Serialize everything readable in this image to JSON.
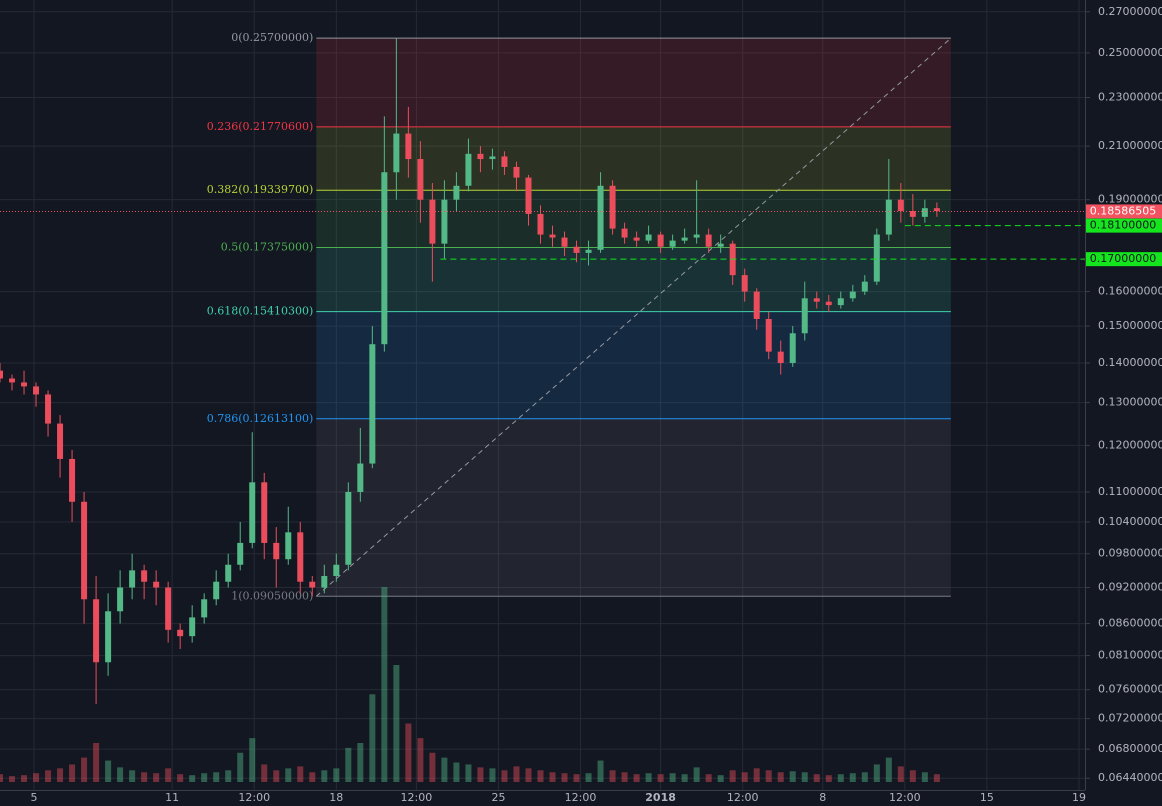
{
  "chart_data": {
    "type": "candlestick",
    "log_scale": true,
    "grid": true,
    "up_color": "#53b987",
    "down_color": "#eb4d5c",
    "xlim": [
      0,
      271
    ],
    "ylim": [
      0.063,
      0.276
    ],
    "xticks": [
      {
        "value": 8.5,
        "label": "5"
      },
      {
        "value": 43,
        "label": "11"
      },
      {
        "value": 63.5,
        "label": "12:00"
      },
      {
        "value": 84,
        "label": "18"
      },
      {
        "value": 104,
        "label": "12:00"
      },
      {
        "value": 124.5,
        "label": "25"
      },
      {
        "value": 145,
        "label": "12:00"
      },
      {
        "value": 165,
        "label": "2018"
      },
      {
        "value": 185.5,
        "label": "12:00"
      },
      {
        "value": 205.5,
        "label": "8"
      },
      {
        "value": 226,
        "label": "12:00"
      },
      {
        "value": 246.5,
        "label": "15"
      },
      {
        "value": 269.5,
        "label": "19"
      }
    ],
    "yticks": [
      {
        "value": 0.27,
        "label": "0.27000000"
      },
      {
        "value": 0.25,
        "label": "0.25000000"
      },
      {
        "value": 0.23,
        "label": "0.23000000"
      },
      {
        "value": 0.21,
        "label": "0.21000000"
      },
      {
        "value": 0.19,
        "label": "0.19000000"
      },
      {
        "value": 0.16,
        "label": "0.16000000"
      },
      {
        "value": 0.15,
        "label": "0.15000000"
      },
      {
        "value": 0.14,
        "label": "0.14000000"
      },
      {
        "value": 0.13,
        "label": "0.13000000"
      },
      {
        "value": 0.12,
        "label": "0.12000000"
      },
      {
        "value": 0.11,
        "label": "0.11000000"
      },
      {
        "value": 0.104,
        "label": "0.10400000"
      },
      {
        "value": 0.098,
        "label": "0.09800000"
      },
      {
        "value": 0.092,
        "label": "0.09200000"
      },
      {
        "value": 0.086,
        "label": "0.08600000"
      },
      {
        "value": 0.081,
        "label": "0.08100000"
      },
      {
        "value": 0.076,
        "label": "0.07600000"
      },
      {
        "value": 0.072,
        "label": "0.07200000"
      },
      {
        "value": 0.068,
        "label": "0.06800000"
      },
      {
        "value": 0.0644,
        "label": "0.06440000"
      }
    ],
    "x": [
      0,
      3,
      6,
      9,
      12,
      15,
      18,
      21,
      24,
      27,
      30,
      33,
      36,
      39,
      42,
      45,
      48,
      51,
      54,
      57,
      60,
      63,
      66,
      69,
      72,
      75,
      78,
      81,
      84,
      87,
      90,
      93,
      96,
      99,
      102,
      105,
      108,
      111,
      114,
      117,
      120,
      123,
      126,
      129,
      132,
      135,
      138,
      141,
      144,
      147,
      150,
      153,
      156,
      159,
      162,
      165,
      168,
      171,
      174,
      177,
      180,
      183,
      186,
      189,
      192,
      195,
      198,
      201,
      204,
      207,
      210,
      213,
      216,
      219,
      222,
      225,
      228,
      231,
      234
    ],
    "open": [
      0.138,
      0.136,
      0.135,
      0.134,
      0.132,
      0.125,
      0.117,
      0.108,
      0.09,
      0.08,
      0.088,
      0.092,
      0.095,
      0.093,
      0.092,
      0.085,
      0.084,
      0.087,
      0.09,
      0.093,
      0.096,
      0.1,
      0.112,
      0.1,
      0.097,
      0.102,
      0.093,
      0.092,
      0.094,
      0.096,
      0.11,
      0.116,
      0.145,
      0.2,
      0.215,
      0.205,
      0.19,
      0.175,
      0.19,
      0.195,
      0.207,
      0.205,
      0.206,
      0.202,
      0.198,
      0.185,
      0.178,
      0.177,
      0.174,
      0.172,
      0.173,
      0.195,
      0.18,
      0.177,
      0.176,
      0.178,
      0.174,
      0.176,
      0.177,
      0.178,
      0.174,
      0.175,
      0.165,
      0.16,
      0.152,
      0.143,
      0.14,
      0.148,
      0.158,
      0.157,
      0.156,
      0.158,
      0.16,
      0.163,
      0.178,
      0.19,
      0.186,
      0.184,
      0.187
    ],
    "high": [
      0.14,
      0.137,
      0.138,
      0.135,
      0.133,
      0.127,
      0.119,
      0.11,
      0.094,
      0.091,
      0.095,
      0.098,
      0.096,
      0.095,
      0.093,
      0.086,
      0.089,
      0.091,
      0.095,
      0.098,
      0.104,
      0.123,
      0.114,
      0.103,
      0.107,
      0.104,
      0.094,
      0.096,
      0.098,
      0.112,
      0.124,
      0.15,
      0.222,
      0.257,
      0.226,
      0.212,
      0.196,
      0.197,
      0.2,
      0.213,
      0.21,
      0.209,
      0.208,
      0.204,
      0.199,
      0.188,
      0.181,
      0.179,
      0.176,
      0.176,
      0.2,
      0.197,
      0.182,
      0.179,
      0.181,
      0.179,
      0.178,
      0.18,
      0.197,
      0.18,
      0.178,
      0.176,
      0.167,
      0.161,
      0.154,
      0.146,
      0.15,
      0.163,
      0.16,
      0.159,
      0.16,
      0.162,
      0.165,
      0.18,
      0.205,
      0.196,
      0.192,
      0.19,
      0.189
    ],
    "low": [
      0.135,
      0.133,
      0.132,
      0.129,
      0.122,
      0.113,
      0.104,
      0.086,
      0.074,
      0.078,
      0.086,
      0.09,
      0.09,
      0.089,
      0.083,
      0.082,
      0.083,
      0.086,
      0.089,
      0.092,
      0.095,
      0.099,
      0.097,
      0.092,
      0.096,
      0.091,
      0.0905,
      0.091,
      0.093,
      0.095,
      0.108,
      0.115,
      0.143,
      0.19,
      0.198,
      0.182,
      0.163,
      0.17,
      0.186,
      0.193,
      0.2,
      0.201,
      0.199,
      0.193,
      0.181,
      0.175,
      0.174,
      0.171,
      0.169,
      0.168,
      0.172,
      0.178,
      0.175,
      0.174,
      0.175,
      0.172,
      0.173,
      0.175,
      0.175,
      0.172,
      0.172,
      0.162,
      0.157,
      0.149,
      0.141,
      0.137,
      0.139,
      0.146,
      0.155,
      0.154,
      0.155,
      0.157,
      0.159,
      0.162,
      0.176,
      0.182,
      0.181,
      0.182,
      0.184
    ],
    "close": [
      0.136,
      0.135,
      0.134,
      0.132,
      0.125,
      0.117,
      0.108,
      0.09,
      0.08,
      0.088,
      0.092,
      0.095,
      0.093,
      0.092,
      0.085,
      0.084,
      0.087,
      0.09,
      0.093,
      0.096,
      0.1,
      0.112,
      0.1,
      0.097,
      0.102,
      0.093,
      0.092,
      0.094,
      0.096,
      0.11,
      0.116,
      0.145,
      0.2,
      0.215,
      0.205,
      0.19,
      0.175,
      0.19,
      0.195,
      0.207,
      0.205,
      0.206,
      0.202,
      0.198,
      0.185,
      0.178,
      0.177,
      0.174,
      0.172,
      0.173,
      0.195,
      0.18,
      0.177,
      0.176,
      0.178,
      0.174,
      0.176,
      0.177,
      0.178,
      0.174,
      0.175,
      0.165,
      0.16,
      0.152,
      0.143,
      0.14,
      0.148,
      0.158,
      0.157,
      0.156,
      0.158,
      0.16,
      0.163,
      0.178,
      0.19,
      0.186,
      0.184,
      0.187,
      0.186
    ],
    "volume": [
      8,
      6,
      7,
      9,
      12,
      14,
      18,
      25,
      40,
      22,
      15,
      12,
      10,
      9,
      14,
      8,
      7,
      9,
      10,
      12,
      30,
      45,
      18,
      12,
      14,
      16,
      10,
      12,
      14,
      35,
      40,
      90,
      200,
      120,
      60,
      45,
      30,
      25,
      20,
      18,
      15,
      14,
      12,
      16,
      14,
      12,
      10,
      9,
      8,
      9,
      22,
      12,
      10,
      8,
      9,
      8,
      9,
      8,
      15,
      8,
      7,
      12,
      10,
      14,
      12,
      10,
      11,
      10,
      8,
      7,
      8,
      9,
      10,
      18,
      25,
      16,
      12,
      10,
      8
    ],
    "fib": {
      "x": [
        79,
        237.5
      ],
      "levels": [
        {
          "price": 0.257,
          "label": "0(0.25700000)",
          "color": "#9598a1"
        },
        {
          "price": 0.217706,
          "label": "0.236(0.21770600)",
          "color": "#f23645"
        },
        {
          "price": 0.193397,
          "label": "0.382(0.19339700)",
          "color": "#b5d334"
        },
        {
          "price": 0.17375,
          "label": "0.5(0.17375000)",
          "color": "#4caf50"
        },
        {
          "price": 0.154103,
          "label": "0.618(0.15410300)",
          "color": "#3fd0b0"
        },
        {
          "price": 0.126131,
          "label": "0.786(0.12613100)",
          "color": "#2196f3"
        },
        {
          "price": 0.0905,
          "label": "1(0.09050000)",
          "color": "#787b86"
        }
      ]
    },
    "price_lines": [
      {
        "value": 0.18586505,
        "label": "0.18586505",
        "color": "#f2525f",
        "style": "dotted",
        "from": 0
      },
      {
        "value": 0.181,
        "label": "0.18100000",
        "color": "#14e51c",
        "style": "dashed",
        "from": 226
      },
      {
        "value": 0.17,
        "label": "0.17000000",
        "color": "#14e51c",
        "style": "dashed",
        "from": 110
      }
    ]
  }
}
